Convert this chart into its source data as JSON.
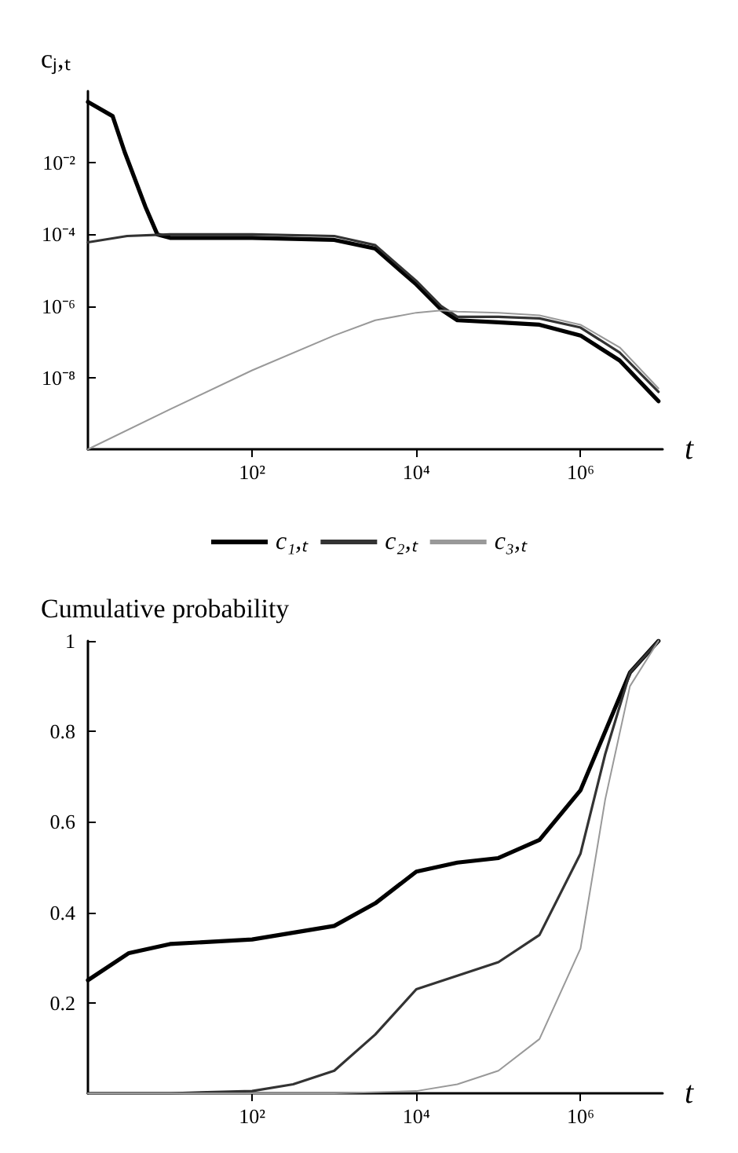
{
  "chart_data": [
    {
      "type": "line",
      "ylabel": "cⱼ,ₜ",
      "xlabel": "t",
      "log": "xy",
      "xlim": [
        1,
        10000000
      ],
      "ylim": [
        1e-10,
        1
      ],
      "xticks": [
        {
          "value": 100,
          "label": "10²"
        },
        {
          "value": 10000,
          "label": "10⁴"
        },
        {
          "value": 1000000,
          "label": "10⁶"
        }
      ],
      "yticks": [
        {
          "value": 0.01,
          "label": "10⁻²"
        },
        {
          "value": 0.0001,
          "label": "10⁻⁴"
        },
        {
          "value": 1e-06,
          "label": "10⁻⁶"
        },
        {
          "value": 1e-08,
          "label": "10⁻⁸"
        }
      ],
      "grid": false,
      "legend": "bottom",
      "marker": "none",
      "line_style": "solid",
      "series": [
        {
          "name": "c₁,ₜ",
          "color": "#000000",
          "x": [
            1,
            2,
            2.8,
            5,
            7,
            10,
            100,
            1000,
            3162,
            10000,
            20000,
            31623,
            100000,
            316228,
            1000000,
            3000000,
            8900000
          ],
          "values": [
            0.5,
            0.2,
            0.02,
            0.0006,
            0.0001,
            8e-05,
            8e-05,
            7e-05,
            4e-05,
            4e-06,
            8e-07,
            4e-07,
            3.5e-07,
            3e-07,
            1.5e-07,
            3e-08,
            2.2e-09
          ]
        },
        {
          "name": "c₂,ₜ",
          "color": "#333333",
          "x": [
            1,
            3,
            10,
            100,
            1000,
            3162,
            10000,
            20000,
            31623,
            100000,
            316228,
            1000000,
            3000000,
            8900000
          ],
          "values": [
            6e-05,
            9e-05,
            0.0001,
            0.0001,
            9e-05,
            5e-05,
            5e-06,
            1e-06,
            5e-07,
            5e-07,
            4.5e-07,
            2.5e-07,
            5e-08,
            4e-09
          ]
        },
        {
          "name": "c₃,ₜ",
          "color": "#999999",
          "x": [
            1,
            10,
            100,
            1000,
            3162,
            10000,
            20000,
            31623,
            100000,
            316228,
            1000000,
            3000000,
            8900000
          ],
          "values": [
            1e-10,
            1.3e-09,
            1.6e-08,
            1.5e-07,
            4e-07,
            6.5e-07,
            7.5e-07,
            7e-07,
            6.5e-07,
            5.5e-07,
            3e-07,
            7e-08,
            5e-09
          ]
        }
      ]
    },
    {
      "type": "line",
      "ylabel": "Cumulative probability",
      "xlabel": "t",
      "log": "x",
      "xlim": [
        1,
        10000000
      ],
      "ylim": [
        0,
        1
      ],
      "xticks": [
        {
          "value": 100,
          "label": "10²"
        },
        {
          "value": 10000,
          "label": "10⁴"
        },
        {
          "value": 1000000,
          "label": "10⁶"
        }
      ],
      "yticks": [
        0.2,
        0.4,
        0.6,
        0.8,
        1
      ],
      "grid": false,
      "legend": false,
      "marker": "none",
      "line_style": "solid",
      "series": [
        {
          "color": "#000000",
          "x": [
            1,
            3.16,
            10,
            100,
            1000,
            3162,
            10000,
            31623,
            100000,
            316228,
            1000000,
            2000000,
            4000000,
            8900000
          ],
          "values": [
            0.25,
            0.31,
            0.33,
            0.34,
            0.37,
            0.42,
            0.49,
            0.51,
            0.52,
            0.56,
            0.67,
            0.8,
            0.93,
            1
          ]
        },
        {
          "color": "#333333",
          "x": [
            1,
            10,
            100,
            316,
            1000,
            3162,
            10000,
            31623,
            100000,
            316228,
            1000000,
            2000000,
            4000000,
            8900000
          ],
          "values": [
            0,
            0,
            0.005,
            0.02,
            0.05,
            0.13,
            0.23,
            0.26,
            0.29,
            0.35,
            0.53,
            0.75,
            0.93,
            1
          ]
        },
        {
          "color": "#999999",
          "x": [
            1,
            1000,
            10000,
            31623,
            100000,
            316228,
            1000000,
            2000000,
            4000000,
            8900000
          ],
          "values": [
            0,
            0,
            0.005,
            0.02,
            0.05,
            0.12,
            0.32,
            0.65,
            0.9,
            1
          ]
        }
      ]
    }
  ]
}
